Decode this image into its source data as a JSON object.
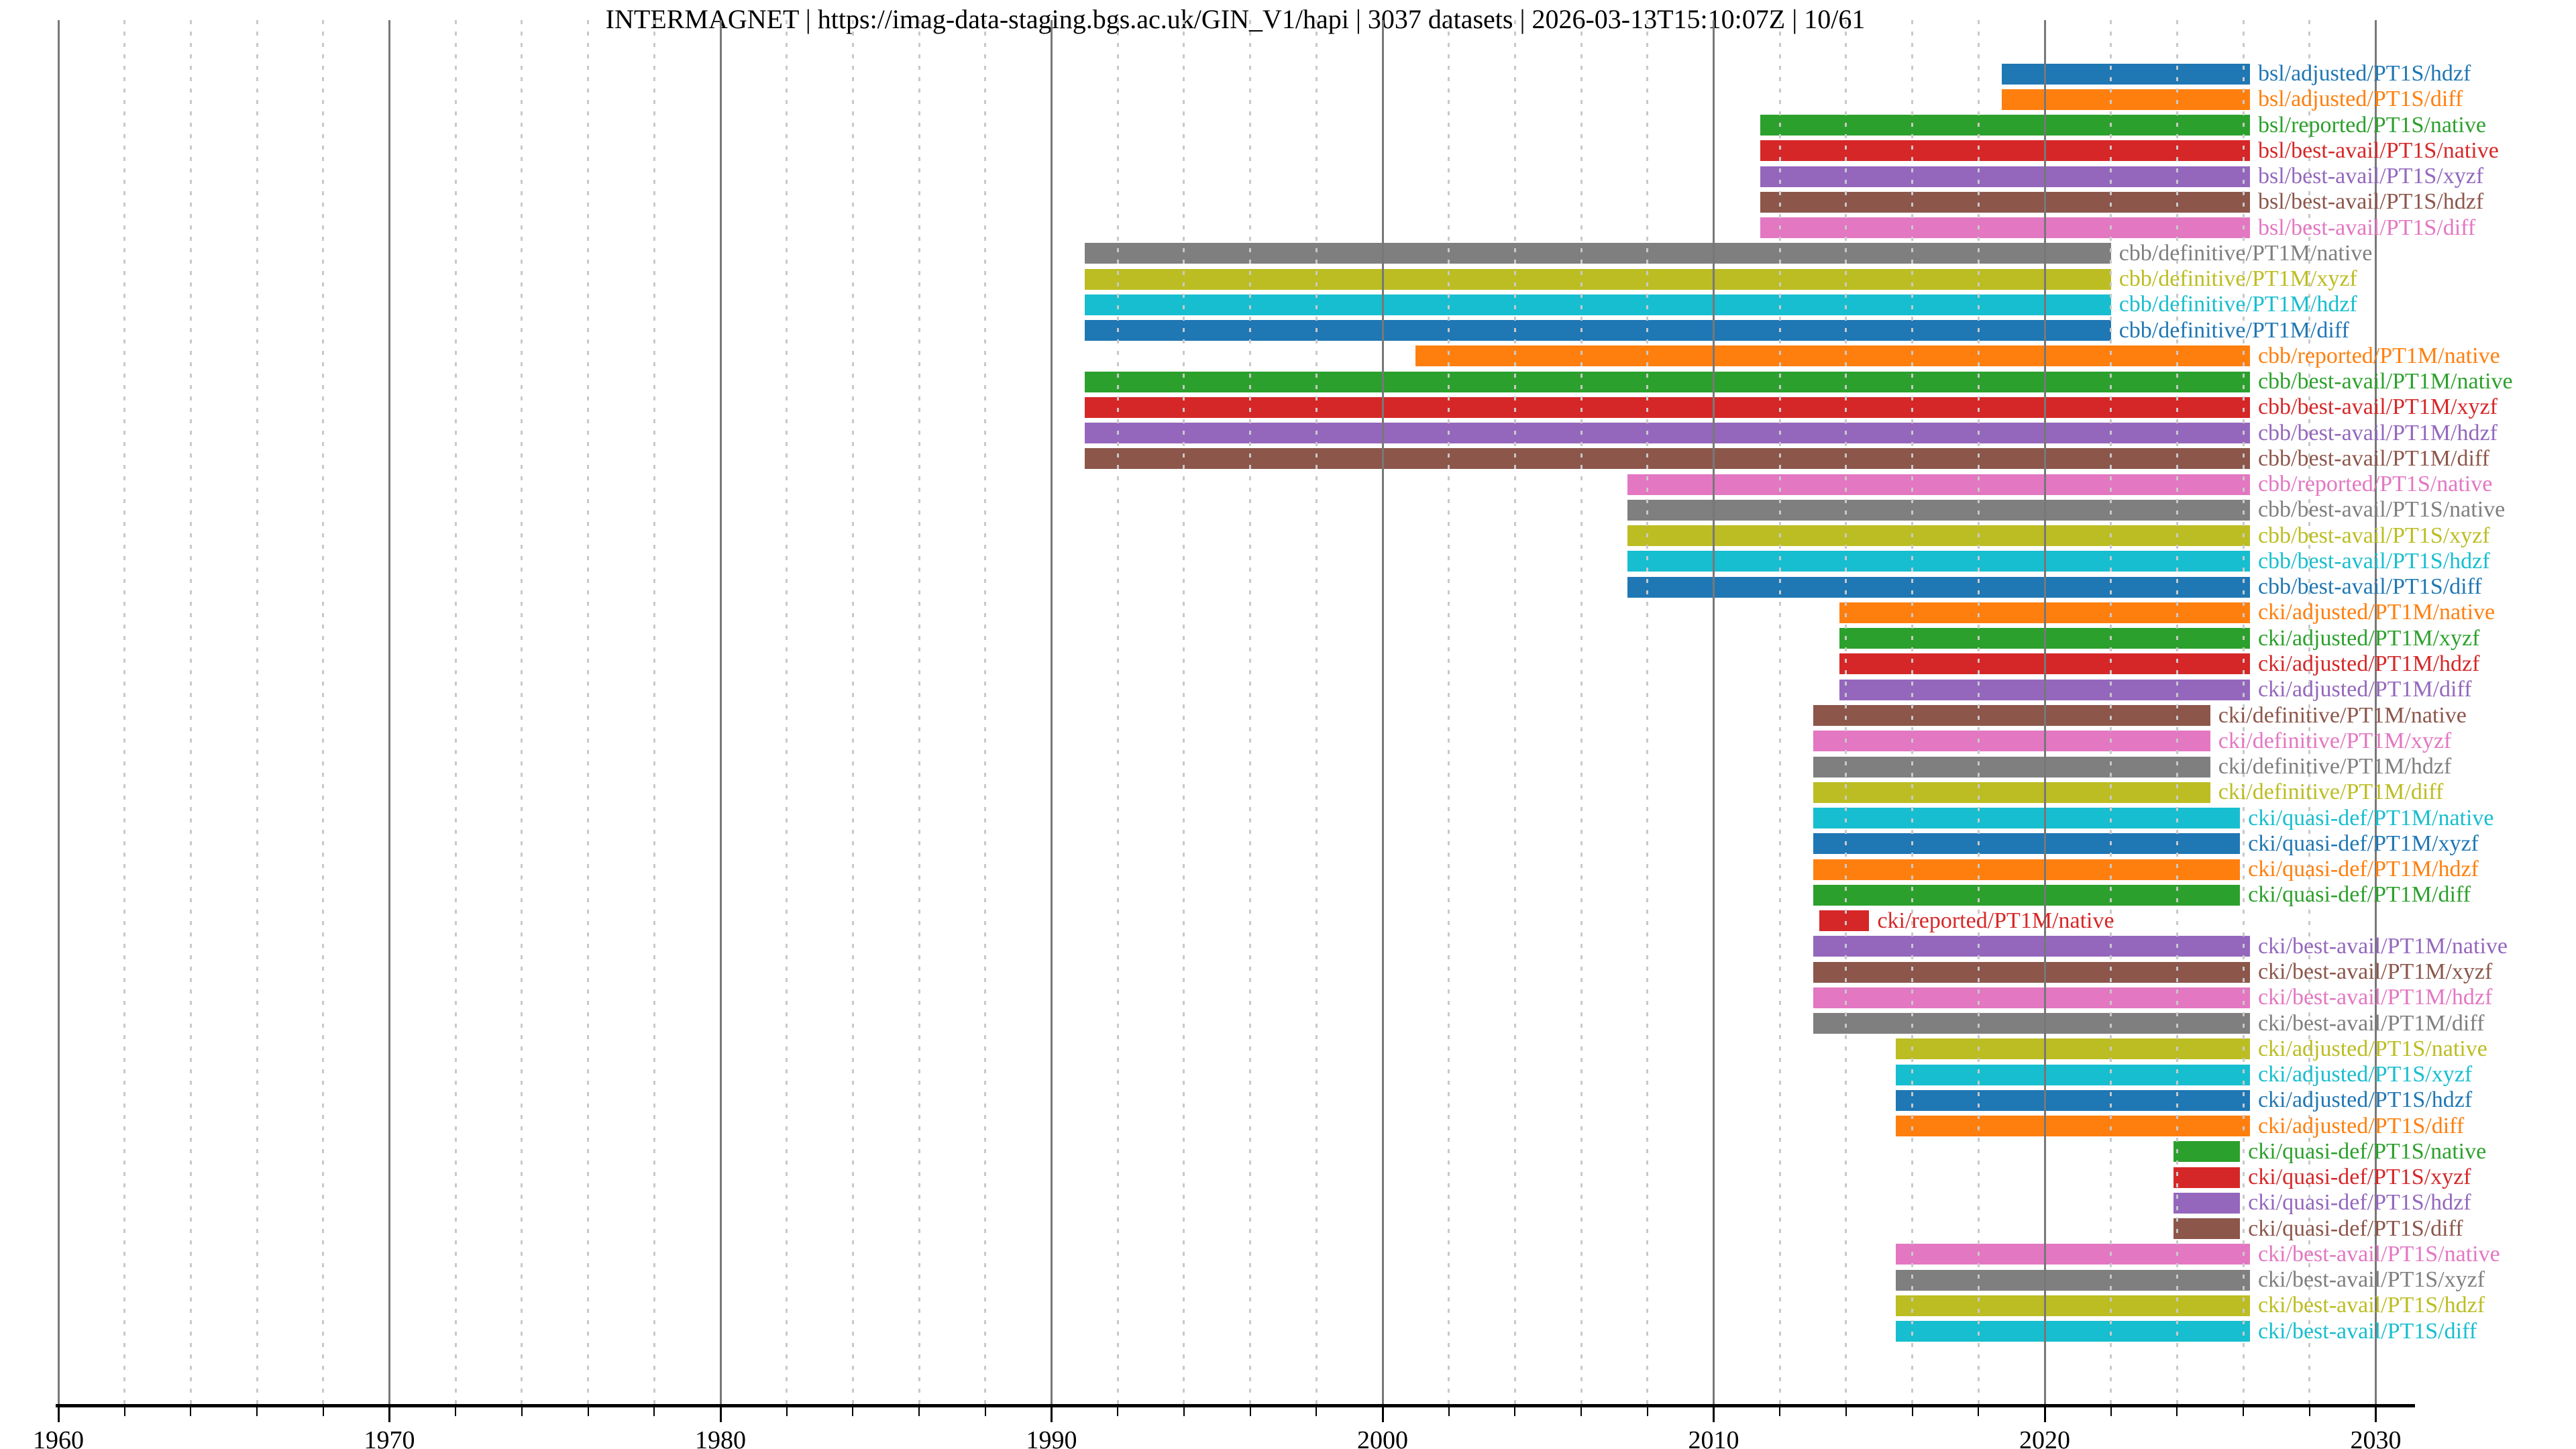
{
  "title": "INTERMAGNET | https://imag-data-staging.bgs.ac.uk/GIN_V1/hapi | 3037 datasets | 2026-03-13T15:10:07Z | 10/61",
  "chart_data": {
    "type": "bar",
    "subtype": "horizontal-timeline-gantt",
    "title": "INTERMAGNET | https://imag-data-staging.bgs.ac.uk/GIN_V1/hapi | 3037 datasets | 2026-03-13T15:10:07Z | 10/61",
    "xlabel": "",
    "ylabel": "",
    "x_axis": {
      "min": 1959.9,
      "max": 2031.3,
      "major_ticks": [
        1960,
        1970,
        1980,
        1990,
        2000,
        2010,
        2020,
        2030
      ],
      "minor_tick_step": 2,
      "grid_major": true,
      "grid_minor_dotted": true
    },
    "legend_position": "none",
    "palette": {
      "blue": "#1f77b4",
      "orange": "#ff7f0e",
      "green": "#2ca02c",
      "red": "#d62728",
      "purple": "#9467bd",
      "brown": "#8c564b",
      "pink": "#e377c2",
      "gray": "#7f7f7f",
      "olive": "#bcbd22",
      "cyan": "#17becf"
    },
    "series": [
      {
        "label": "bsl/adjusted/PT1S/hdzf",
        "color": "blue",
        "start": 2018.7,
        "end": 2026.2
      },
      {
        "label": "bsl/adjusted/PT1S/diff",
        "color": "orange",
        "start": 2018.7,
        "end": 2026.2
      },
      {
        "label": "bsl/reported/PT1S/native",
        "color": "green",
        "start": 2011.4,
        "end": 2026.2
      },
      {
        "label": "bsl/best-avail/PT1S/native",
        "color": "red",
        "start": 2011.4,
        "end": 2026.2
      },
      {
        "label": "bsl/best-avail/PT1S/xyzf",
        "color": "purple",
        "start": 2011.4,
        "end": 2026.2
      },
      {
        "label": "bsl/best-avail/PT1S/hdzf",
        "color": "brown",
        "start": 2011.4,
        "end": 2026.2
      },
      {
        "label": "bsl/best-avail/PT1S/diff",
        "color": "pink",
        "start": 2011.4,
        "end": 2026.2
      },
      {
        "label": "cbb/definitive/PT1M/native",
        "color": "gray",
        "start": 1991.0,
        "end": 2022.0
      },
      {
        "label": "cbb/definitive/PT1M/xyzf",
        "color": "olive",
        "start": 1991.0,
        "end": 2022.0
      },
      {
        "label": "cbb/definitive/PT1M/hdzf",
        "color": "cyan",
        "start": 1991.0,
        "end": 2022.0
      },
      {
        "label": "cbb/definitive/PT1M/diff",
        "color": "blue",
        "start": 1991.0,
        "end": 2022.0
      },
      {
        "label": "cbb/reported/PT1M/native",
        "color": "orange",
        "start": 2001.0,
        "end": 2026.2
      },
      {
        "label": "cbb/best-avail/PT1M/native",
        "color": "green",
        "start": 1991.0,
        "end": 2026.2
      },
      {
        "label": "cbb/best-avail/PT1M/xyzf",
        "color": "red",
        "start": 1991.0,
        "end": 2026.2
      },
      {
        "label": "cbb/best-avail/PT1M/hdzf",
        "color": "purple",
        "start": 1991.0,
        "end": 2026.2
      },
      {
        "label": "cbb/best-avail/PT1M/diff",
        "color": "brown",
        "start": 1991.0,
        "end": 2026.2
      },
      {
        "label": "cbb/reported/PT1S/native",
        "color": "pink",
        "start": 2007.4,
        "end": 2026.2
      },
      {
        "label": "cbb/best-avail/PT1S/native",
        "color": "gray",
        "start": 2007.4,
        "end": 2026.2
      },
      {
        "label": "cbb/best-avail/PT1S/xyzf",
        "color": "olive",
        "start": 2007.4,
        "end": 2026.2
      },
      {
        "label": "cbb/best-avail/PT1S/hdzf",
        "color": "cyan",
        "start": 2007.4,
        "end": 2026.2
      },
      {
        "label": "cbb/best-avail/PT1S/diff",
        "color": "blue",
        "start": 2007.4,
        "end": 2026.2
      },
      {
        "label": "cki/adjusted/PT1M/native",
        "color": "orange",
        "start": 2013.8,
        "end": 2026.2
      },
      {
        "label": "cki/adjusted/PT1M/xyzf",
        "color": "green",
        "start": 2013.8,
        "end": 2026.2
      },
      {
        "label": "cki/adjusted/PT1M/hdzf",
        "color": "red",
        "start": 2013.8,
        "end": 2026.2
      },
      {
        "label": "cki/adjusted/PT1M/diff",
        "color": "purple",
        "start": 2013.8,
        "end": 2026.2
      },
      {
        "label": "cki/definitive/PT1M/native",
        "color": "brown",
        "start": 2013.0,
        "end": 2025.0
      },
      {
        "label": "cki/definitive/PT1M/xyzf",
        "color": "pink",
        "start": 2013.0,
        "end": 2025.0
      },
      {
        "label": "cki/definitive/PT1M/hdzf",
        "color": "gray",
        "start": 2013.0,
        "end": 2025.0
      },
      {
        "label": "cki/definitive/PT1M/diff",
        "color": "olive",
        "start": 2013.0,
        "end": 2025.0
      },
      {
        "label": "cki/quasi-def/PT1M/native",
        "color": "cyan",
        "start": 2013.0,
        "end": 2025.9
      },
      {
        "label": "cki/quasi-def/PT1M/xyzf",
        "color": "blue",
        "start": 2013.0,
        "end": 2025.9
      },
      {
        "label": "cki/quasi-def/PT1M/hdzf",
        "color": "orange",
        "start": 2013.0,
        "end": 2025.9
      },
      {
        "label": "cki/quasi-def/PT1M/diff",
        "color": "green",
        "start": 2013.0,
        "end": 2025.9
      },
      {
        "label": "cki/reported/PT1M/native",
        "color": "red",
        "start": 2013.2,
        "end": 2014.7
      },
      {
        "label": "cki/best-avail/PT1M/native",
        "color": "purple",
        "start": 2013.0,
        "end": 2026.2
      },
      {
        "label": "cki/best-avail/PT1M/xyzf",
        "color": "brown",
        "start": 2013.0,
        "end": 2026.2
      },
      {
        "label": "cki/best-avail/PT1M/hdzf",
        "color": "pink",
        "start": 2013.0,
        "end": 2026.2
      },
      {
        "label": "cki/best-avail/PT1M/diff",
        "color": "gray",
        "start": 2013.0,
        "end": 2026.2
      },
      {
        "label": "cki/adjusted/PT1S/native",
        "color": "olive",
        "start": 2015.5,
        "end": 2026.2
      },
      {
        "label": "cki/adjusted/PT1S/xyzf",
        "color": "cyan",
        "start": 2015.5,
        "end": 2026.2
      },
      {
        "label": "cki/adjusted/PT1S/hdzf",
        "color": "blue",
        "start": 2015.5,
        "end": 2026.2
      },
      {
        "label": "cki/adjusted/PT1S/diff",
        "color": "orange",
        "start": 2015.5,
        "end": 2026.2
      },
      {
        "label": "cki/quasi-def/PT1S/native",
        "color": "green",
        "start": 2023.9,
        "end": 2025.9
      },
      {
        "label": "cki/quasi-def/PT1S/xyzf",
        "color": "red",
        "start": 2023.9,
        "end": 2025.9
      },
      {
        "label": "cki/quasi-def/PT1S/hdzf",
        "color": "purple",
        "start": 2023.9,
        "end": 2025.9
      },
      {
        "label": "cki/quasi-def/PT1S/diff",
        "color": "brown",
        "start": 2023.9,
        "end": 2025.9
      },
      {
        "label": "cki/best-avail/PT1S/native",
        "color": "pink",
        "start": 2015.5,
        "end": 2026.2
      },
      {
        "label": "cki/best-avail/PT1S/xyzf",
        "color": "gray",
        "start": 2015.5,
        "end": 2026.2
      },
      {
        "label": "cki/best-avail/PT1S/hdzf",
        "color": "olive",
        "start": 2015.5,
        "end": 2026.2
      },
      {
        "label": "cki/best-avail/PT1S/diff",
        "color": "cyan",
        "start": 2015.5,
        "end": 2026.2
      }
    ]
  }
}
